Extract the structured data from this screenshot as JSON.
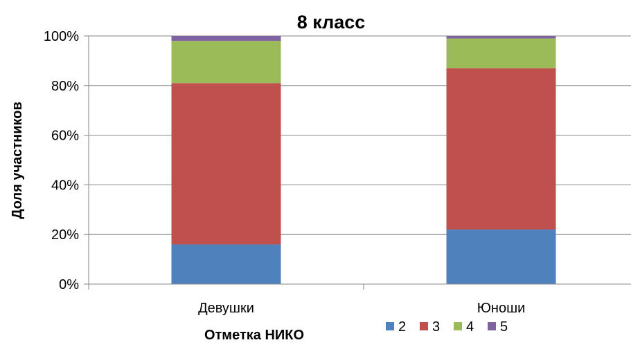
{
  "chart_data": {
    "type": "bar",
    "stacked": true,
    "percent": true,
    "title": "8 класс",
    "xlabel": "Отметка НИКО",
    "ylabel": "Доля участников",
    "categories": [
      "Девушки",
      "Юноши"
    ],
    "series": [
      {
        "name": "2",
        "color": "#4F81BD",
        "values": [
          16,
          22
        ]
      },
      {
        "name": "3",
        "color": "#C0504D",
        "values": [
          65,
          65
        ]
      },
      {
        "name": "4",
        "color": "#9BBB59",
        "values": [
          17,
          12
        ]
      },
      {
        "name": "5",
        "color": "#8064A2",
        "values": [
          2,
          1
        ]
      }
    ],
    "ylim": [
      0,
      100
    ],
    "yticks": [
      "0%",
      "20%",
      "40%",
      "60%",
      "80%",
      "100%"
    ],
    "grid": true,
    "legend": "bottom-right"
  }
}
